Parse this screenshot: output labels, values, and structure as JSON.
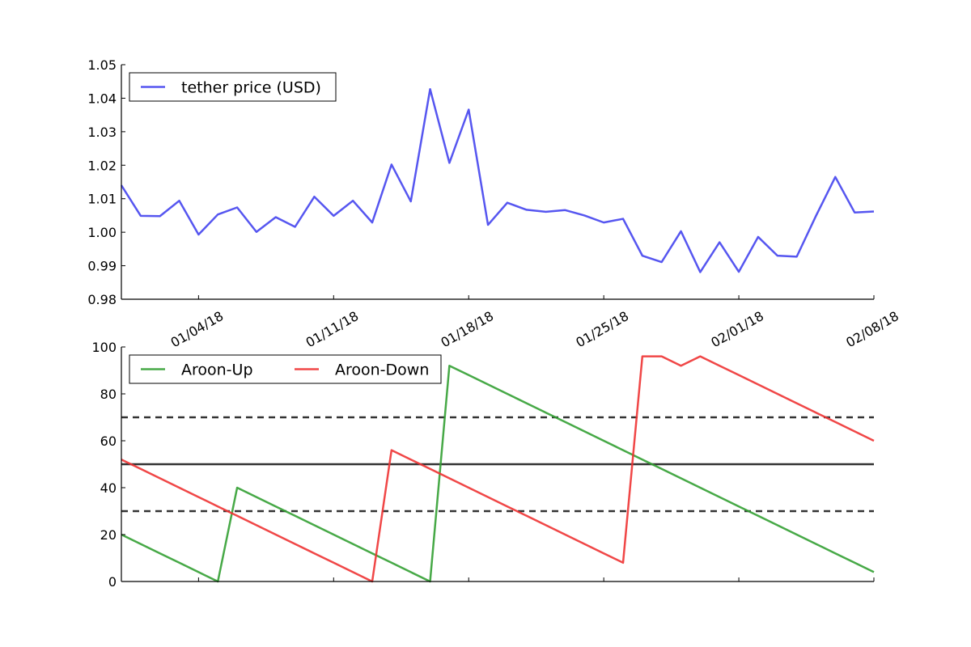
{
  "chart_data": [
    {
      "type": "line",
      "title": "",
      "xlabel": "",
      "ylabel": "",
      "xlim": [
        "2017-12-31",
        "2018-02-08"
      ],
      "ylim": [
        0.98,
        1.05
      ],
      "x_ticks": [
        "2018-01-04",
        "2018-01-11",
        "2018-01-18",
        "2018-01-25",
        "2018-02-01",
        "2018-02-08"
      ],
      "x_tick_labels": [
        "01/04/18",
        "01/11/18",
        "01/18/18",
        "01/25/18",
        "02/01/18",
        "02/08/18"
      ],
      "y_ticks": [
        0.98,
        0.99,
        1.0,
        1.01,
        1.02,
        1.03,
        1.04,
        1.05
      ],
      "y_tick_labels": [
        "0.98",
        "0.99",
        "1.00",
        "1.01",
        "1.02",
        "1.03",
        "1.04",
        "1.05"
      ],
      "legend": {
        "position": "top-left",
        "columns": 1
      },
      "x": [
        "2017-12-31",
        "2018-01-01",
        "2018-01-02",
        "2018-01-03",
        "2018-01-04",
        "2018-01-05",
        "2018-01-06",
        "2018-01-07",
        "2018-01-08",
        "2018-01-09",
        "2018-01-10",
        "2018-01-11",
        "2018-01-12",
        "2018-01-13",
        "2018-01-14",
        "2018-01-15",
        "2018-01-16",
        "2018-01-17",
        "2018-01-18",
        "2018-01-19",
        "2018-01-20",
        "2018-01-21",
        "2018-01-22",
        "2018-01-23",
        "2018-01-24",
        "2018-01-25",
        "2018-01-26",
        "2018-01-27",
        "2018-01-28",
        "2018-01-29",
        "2018-01-30",
        "2018-01-31",
        "2018-02-01",
        "2018-02-02",
        "2018-02-03",
        "2018-02-04",
        "2018-02-05",
        "2018-02-06",
        "2018-02-07",
        "2018-02-08"
      ],
      "series": [
        {
          "name": "tether price (USD)",
          "color": "#4444ee",
          "values": [
            1.014,
            1.0049,
            1.0048,
            1.0094,
            0.9993,
            1.0053,
            1.0074,
            1.0001,
            1.0045,
            1.0016,
            1.0106,
            1.0049,
            1.0094,
            1.0029,
            1.0202,
            1.0092,
            1.0427,
            1.0207,
            1.0366,
            1.0022,
            1.0088,
            1.0067,
            1.0061,
            1.0066,
            1.005,
            1.0029,
            1.004,
            0.993,
            0.9911,
            1.0003,
            0.9881,
            0.997,
            0.9882,
            0.9986,
            0.993,
            0.9927,
            1.0049,
            1.0165,
            1.0059,
            1.0062
          ]
        }
      ]
    },
    {
      "type": "line",
      "title": "",
      "xlabel": "",
      "ylabel": "",
      "xlim": [
        "2017-12-31",
        "2018-02-08"
      ],
      "ylim": [
        0,
        100
      ],
      "y_ticks": [
        0,
        20,
        40,
        60,
        80,
        100
      ],
      "y_tick_labels": [
        "0",
        "20",
        "40",
        "60",
        "80",
        "100"
      ],
      "legend": {
        "position": "top-left",
        "columns": 2
      },
      "reference_lines": [
        {
          "y": 70,
          "style": "dashed",
          "color": "#333333"
        },
        {
          "y": 50,
          "style": "solid",
          "color": "#333333"
        },
        {
          "y": 30,
          "style": "dashed",
          "color": "#333333"
        }
      ],
      "x": [
        "2017-12-31",
        "2018-01-01",
        "2018-01-02",
        "2018-01-03",
        "2018-01-04",
        "2018-01-05",
        "2018-01-06",
        "2018-01-07",
        "2018-01-08",
        "2018-01-09",
        "2018-01-10",
        "2018-01-11",
        "2018-01-12",
        "2018-01-13",
        "2018-01-14",
        "2018-01-15",
        "2018-01-16",
        "2018-01-17",
        "2018-01-18",
        "2018-01-19",
        "2018-01-20",
        "2018-01-21",
        "2018-01-22",
        "2018-01-23",
        "2018-01-24",
        "2018-01-25",
        "2018-01-26",
        "2018-01-27",
        "2018-01-28",
        "2018-01-29",
        "2018-01-30",
        "2018-01-31",
        "2018-02-01",
        "2018-02-02",
        "2018-02-03",
        "2018-02-04",
        "2018-02-05",
        "2018-02-06",
        "2018-02-07",
        "2018-02-08"
      ],
      "series": [
        {
          "name": "Aroon-Up",
          "color": "#33a033",
          "values": [
            20,
            16,
            12,
            8,
            4,
            0,
            40,
            36,
            32,
            28,
            24,
            20,
            16,
            12,
            8,
            4,
            0,
            92,
            88,
            84,
            80,
            76,
            72,
            68,
            64,
            60,
            56,
            52,
            48,
            44,
            40,
            36,
            32,
            28,
            24,
            20,
            16,
            12,
            8,
            4
          ]
        },
        {
          "name": "Aroon-Down",
          "color": "#ee3333",
          "values": [
            52,
            48,
            44,
            40,
            36,
            32,
            28,
            24,
            20,
            16,
            12,
            8,
            4,
            0,
            56,
            52,
            48,
            44,
            40,
            36,
            32,
            28,
            24,
            20,
            16,
            12,
            8,
            96,
            96,
            92,
            96,
            92,
            88,
            84,
            80,
            76,
            72,
            68,
            64,
            60
          ]
        }
      ]
    }
  ]
}
